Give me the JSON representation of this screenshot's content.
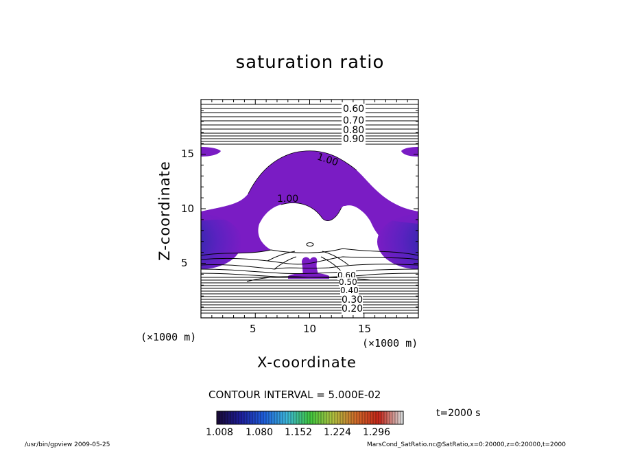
{
  "chart_data": {
    "type": "contour",
    "title": "saturation ratio",
    "xlabel": "X-coordinate",
    "ylabel": "Z-coordinate",
    "x_unit": "(×1000 m)",
    "z_unit": "(×1000 m)",
    "xlim": [
      0,
      20
    ],
    "ylim": [
      0,
      20
    ],
    "x_ticks": [
      "5",
      "10",
      "15"
    ],
    "z_ticks": [
      "5",
      "10",
      "15"
    ],
    "contour_labels_top": [
      "0.60",
      "0.70",
      "0.80",
      "0.90"
    ],
    "contour_labels_mid": [
      "1.00",
      "1.00"
    ],
    "contour_labels_bottom": [
      "0.60",
      "0.50",
      "0.40",
      "0.30",
      "0.20"
    ],
    "contour_interval_text": "CONTOUR INTERVAL = 5.000E-02",
    "time_text": "t=2000 s",
    "colorbar": {
      "ticks": [
        "1.008",
        "1.080",
        "1.152",
        "1.224",
        "1.296"
      ],
      "colors": [
        "#1a0a3a",
        "#1e1e9c",
        "#1f5fdc",
        "#3db6d8",
        "#3fc63f",
        "#b0c040",
        "#d06a2a",
        "#c42418",
        "#d8d8d8"
      ]
    },
    "fill_color": "#7a1cc4",
    "deep_fill_color": "#2a1a9a"
  },
  "footer": {
    "left": "/usr/bin/gpview   2009-05-25",
    "right": "MarsCond_SatRatio.nc@SatRatio,x=0:20000,z=0:20000,t=2000"
  }
}
